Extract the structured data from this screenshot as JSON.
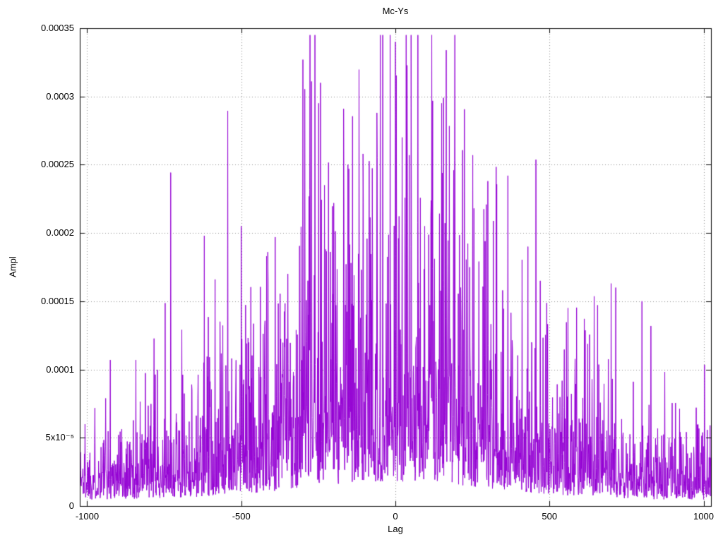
{
  "figure": {
    "background": "#ffffff"
  },
  "chart_data": {
    "type": "line",
    "title": "Mc-Ys",
    "xlabel": "Lag",
    "ylabel": "Ampl",
    "xlim": [
      -1024,
      1024
    ],
    "ylim": [
      0,
      0.00035
    ],
    "xticks": {
      "values": [
        -1000,
        -500,
        0,
        500,
        1000
      ],
      "labels": [
        "-1000",
        "-500",
        "0",
        "500",
        "1000"
      ]
    },
    "yticks": {
      "values": [
        0,
        5e-05,
        0.0001,
        0.00015,
        0.0002,
        0.00025,
        0.0003,
        0.00035
      ],
      "labels": [
        "0",
        "5x10⁻⁵",
        "0.0001",
        "0.00015",
        "0.0002",
        "0.00025",
        "0.0003",
        "0.00035"
      ]
    },
    "grid": true,
    "legend": "none",
    "color": "#9400d3",
    "grid_color": "#8c8c8c",
    "axis_color": "#000000",
    "series": {
      "name": "Mc-Ys",
      "description": "Dense noisy correlation-magnitude trace, envelope peaking at lag 0 (~0.00034 max) and decaying toward +/-1000 (baseline ~0.00002-0.00006). Approximated by seeded noise under a Gaussian envelope.",
      "points_generator": {
        "n": 2048,
        "x_start": -1024,
        "x_step": 1,
        "seed": 1337,
        "envelope": {
          "base": 5.5e-05,
          "peak": 0.00016,
          "sigma": 480
        },
        "noise": {
          "floor": 0.08,
          "scale": 0.37,
          "clip_min": 2e-06,
          "clip_max": 0.000345
        }
      },
      "notable_peaks": [
        {
          "x": -925,
          "y": 0.000107
        },
        {
          "x": -620,
          "y": 0.000198
        },
        {
          "x": -585,
          "y": 0.000166
        },
        {
          "x": -500,
          "y": 0.000205
        },
        {
          "x": -390,
          "y": 0.000197
        },
        {
          "x": -300,
          "y": 0.000327
        },
        {
          "x": -272,
          "y": 0.000311
        },
        {
          "x": -243,
          "y": 0.00031
        },
        {
          "x": -230,
          "y": 0.000235
        },
        {
          "x": -168,
          "y": 0.000291
        },
        {
          "x": -105,
          "y": 0.000258
        },
        {
          "x": -60,
          "y": 0.000288
        },
        {
          "x": 0,
          "y": 0.00034
        },
        {
          "x": 22,
          "y": 0.00027
        },
        {
          "x": 45,
          "y": 0.000257
        },
        {
          "x": 95,
          "y": 0.000205
        },
        {
          "x": 150,
          "y": 0.000295
        },
        {
          "x": 152,
          "y": 0.000244
        },
        {
          "x": 255,
          "y": 0.000218
        },
        {
          "x": 300,
          "y": 0.000238
        },
        {
          "x": 365,
          "y": 0.000242
        },
        {
          "x": 430,
          "y": 0.00019
        },
        {
          "x": 470,
          "y": 0.000165
        },
        {
          "x": 560,
          "y": 0.000145
        },
        {
          "x": 700,
          "y": 0.000163
        },
        {
          "x": 715,
          "y": 0.00016
        },
        {
          "x": 800,
          "y": 0.00015
        }
      ]
    }
  }
}
